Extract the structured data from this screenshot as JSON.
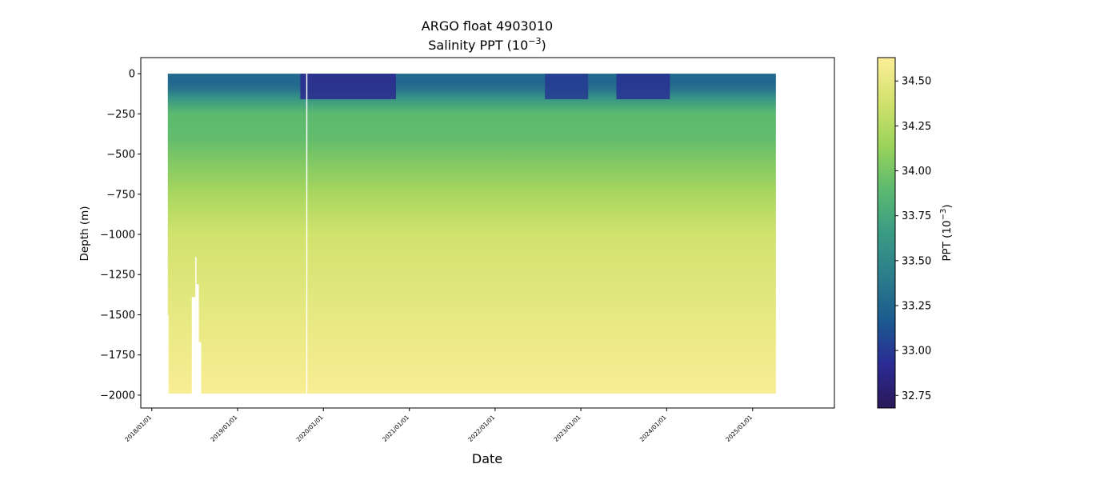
{
  "chart_data": {
    "type": "heatmap",
    "title": "ARGO float 4903010",
    "subtitle_base": "Salinity PPT (10",
    "subtitle_sup": "−3",
    "subtitle_end": ")",
    "xlabel": "Date",
    "ylabel": "Depth (m)",
    "colorbar_label_base": "PPT (10",
    "colorbar_label_sup": "−3",
    "colorbar_label_end": ")",
    "colormap": "haline",
    "colormap_stops": [
      "#2a1858",
      "#2b2b94",
      "#1b5a8f",
      "#2c7d8b",
      "#3a9b84",
      "#5cba6f",
      "#9cd35a",
      "#d2e26e",
      "#fdee98"
    ],
    "xlim": [
      "2017/11/15",
      "2025/12/15"
    ],
    "x_data_range": [
      "2018/03/10",
      "2025/04/10"
    ],
    "ylim": [
      -2080,
      100
    ],
    "depth_range": [
      -1990,
      0
    ],
    "clim": [
      32.68,
      34.63
    ],
    "xticks": [
      {
        "date": "2018/01/01",
        "label": "2018/01/01"
      },
      {
        "date": "2019/01/01",
        "label": "2019/01/01"
      },
      {
        "date": "2020/01/01",
        "label": "2020/01/01"
      },
      {
        "date": "2021/01/01",
        "label": "2021/01/01"
      },
      {
        "date": "2022/01/01",
        "label": "2022/01/01"
      },
      {
        "date": "2023/01/01",
        "label": "2023/01/01"
      },
      {
        "date": "2024/01/01",
        "label": "2024/01/01"
      },
      {
        "date": "2025/01/01",
        "label": "2025/01/01"
      }
    ],
    "yticks": [
      {
        "value": 0,
        "label": "0"
      },
      {
        "value": -250,
        "label": "−250"
      },
      {
        "value": -500,
        "label": "−500"
      },
      {
        "value": -750,
        "label": "−750"
      },
      {
        "value": -1000,
        "label": "−1000"
      },
      {
        "value": -1250,
        "label": "−1250"
      },
      {
        "value": -1500,
        "label": "−1500"
      },
      {
        "value": -1750,
        "label": "−1750"
      },
      {
        "value": -2000,
        "label": "−2000"
      }
    ],
    "colorbar_ticks": [
      {
        "value": 32.75,
        "label": "32.75"
      },
      {
        "value": 33.0,
        "label": "33.00"
      },
      {
        "value": 33.25,
        "label": "33.25"
      },
      {
        "value": 33.5,
        "label": "33.50"
      },
      {
        "value": 33.75,
        "label": "33.75"
      },
      {
        "value": 34.0,
        "label": "34.00"
      },
      {
        "value": 34.25,
        "label": "34.25"
      },
      {
        "value": 34.5,
        "label": "34.50"
      }
    ],
    "salinity_profile": [
      {
        "depth": 0,
        "salinity": 33.3
      },
      {
        "depth": -50,
        "salinity": 33.25
      },
      {
        "depth": -100,
        "salinity": 33.35
      },
      {
        "depth": -150,
        "salinity": 33.6
      },
      {
        "depth": -250,
        "salinity": 33.9
      },
      {
        "depth": -400,
        "salinity": 33.92
      },
      {
        "depth": -500,
        "salinity": 34.0
      },
      {
        "depth": -750,
        "salinity": 34.2
      },
      {
        "depth": -1000,
        "salinity": 34.38
      },
      {
        "depth": -1500,
        "salinity": 34.5
      },
      {
        "depth": -2000,
        "salinity": 34.6
      }
    ],
    "fresh_surface_periods": [
      {
        "start": "2019/09/25",
        "end": "2020/11/05",
        "surface_salinity": 32.9
      },
      {
        "start": "2022/08/01",
        "end": "2023/02/01",
        "surface_salinity": 33.0
      },
      {
        "start": "2023/06/01",
        "end": "2024/01/15",
        "surface_salinity": 32.95
      }
    ],
    "data_gaps": [
      {
        "start": "2018/03/10",
        "end": "2018/03/12",
        "from_depth": -1500,
        "to_depth": -1995
      },
      {
        "start": "2018/06/20",
        "end": "2018/07/05",
        "from_depth": -1390,
        "to_depth": -1995
      },
      {
        "start": "2018/07/05",
        "end": "2018/07/10",
        "from_depth": -1140,
        "to_depth": -1995
      },
      {
        "start": "2018/07/10",
        "end": "2018/07/20",
        "from_depth": -1310,
        "to_depth": -1995
      },
      {
        "start": "2018/07/20",
        "end": "2018/07/30",
        "from_depth": -1670,
        "to_depth": -1995
      },
      {
        "start": "2019/10/20",
        "end": "2019/10/25",
        "from_depth": 10,
        "to_depth": -1995
      }
    ]
  }
}
